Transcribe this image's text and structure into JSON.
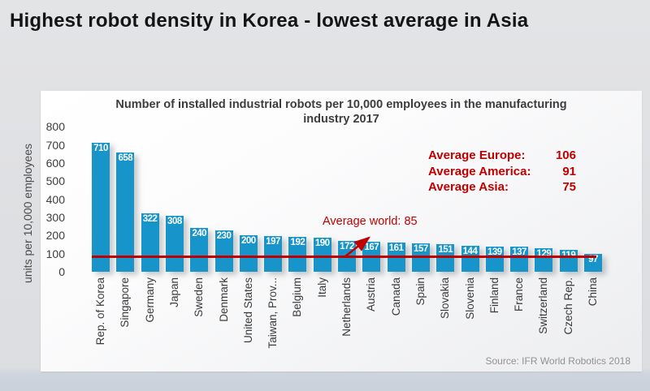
{
  "page_title": "Highest robot density in Korea - lowest average in Asia",
  "source": "Source: IFR World Robotics 2018",
  "chart_data": {
    "type": "bar",
    "title": "Number of installed industrial robots per 10,000 employees in the manufacturing industry 2017",
    "ylabel": "units per 10,000 employees",
    "ylim": [
      0,
      800
    ],
    "ytick_step": 100,
    "grid": false,
    "legend_position": "none",
    "categories": [
      "Rep. of Korea",
      "Singapore",
      "Germany",
      "Japan",
      "Sweden",
      "Denmark",
      "United States",
      "Taiwan, Prov...",
      "Belgium",
      "Italy",
      "Netherlands",
      "Austria",
      "Canada",
      "Spain",
      "Slovakia",
      "Slovenia",
      "Finland",
      "France",
      "Switzerland",
      "Czech Rep.",
      "China"
    ],
    "values": [
      710,
      658,
      322,
      308,
      240,
      230,
      200,
      197,
      192,
      190,
      172,
      167,
      161,
      157,
      151,
      144,
      139,
      137,
      129,
      119,
      97
    ],
    "bar_color": "#1795ca",
    "value_label_color": "#ffffff",
    "annotation_color": "#c00000",
    "reference_line": {
      "label": "Average world: 85",
      "value": 85
    },
    "annotations": [
      {
        "label": "Average Europe:",
        "value": "106"
      },
      {
        "label": "Average America:",
        "value": "91"
      },
      {
        "label": "Average Asia:",
        "value": "75"
      }
    ]
  }
}
